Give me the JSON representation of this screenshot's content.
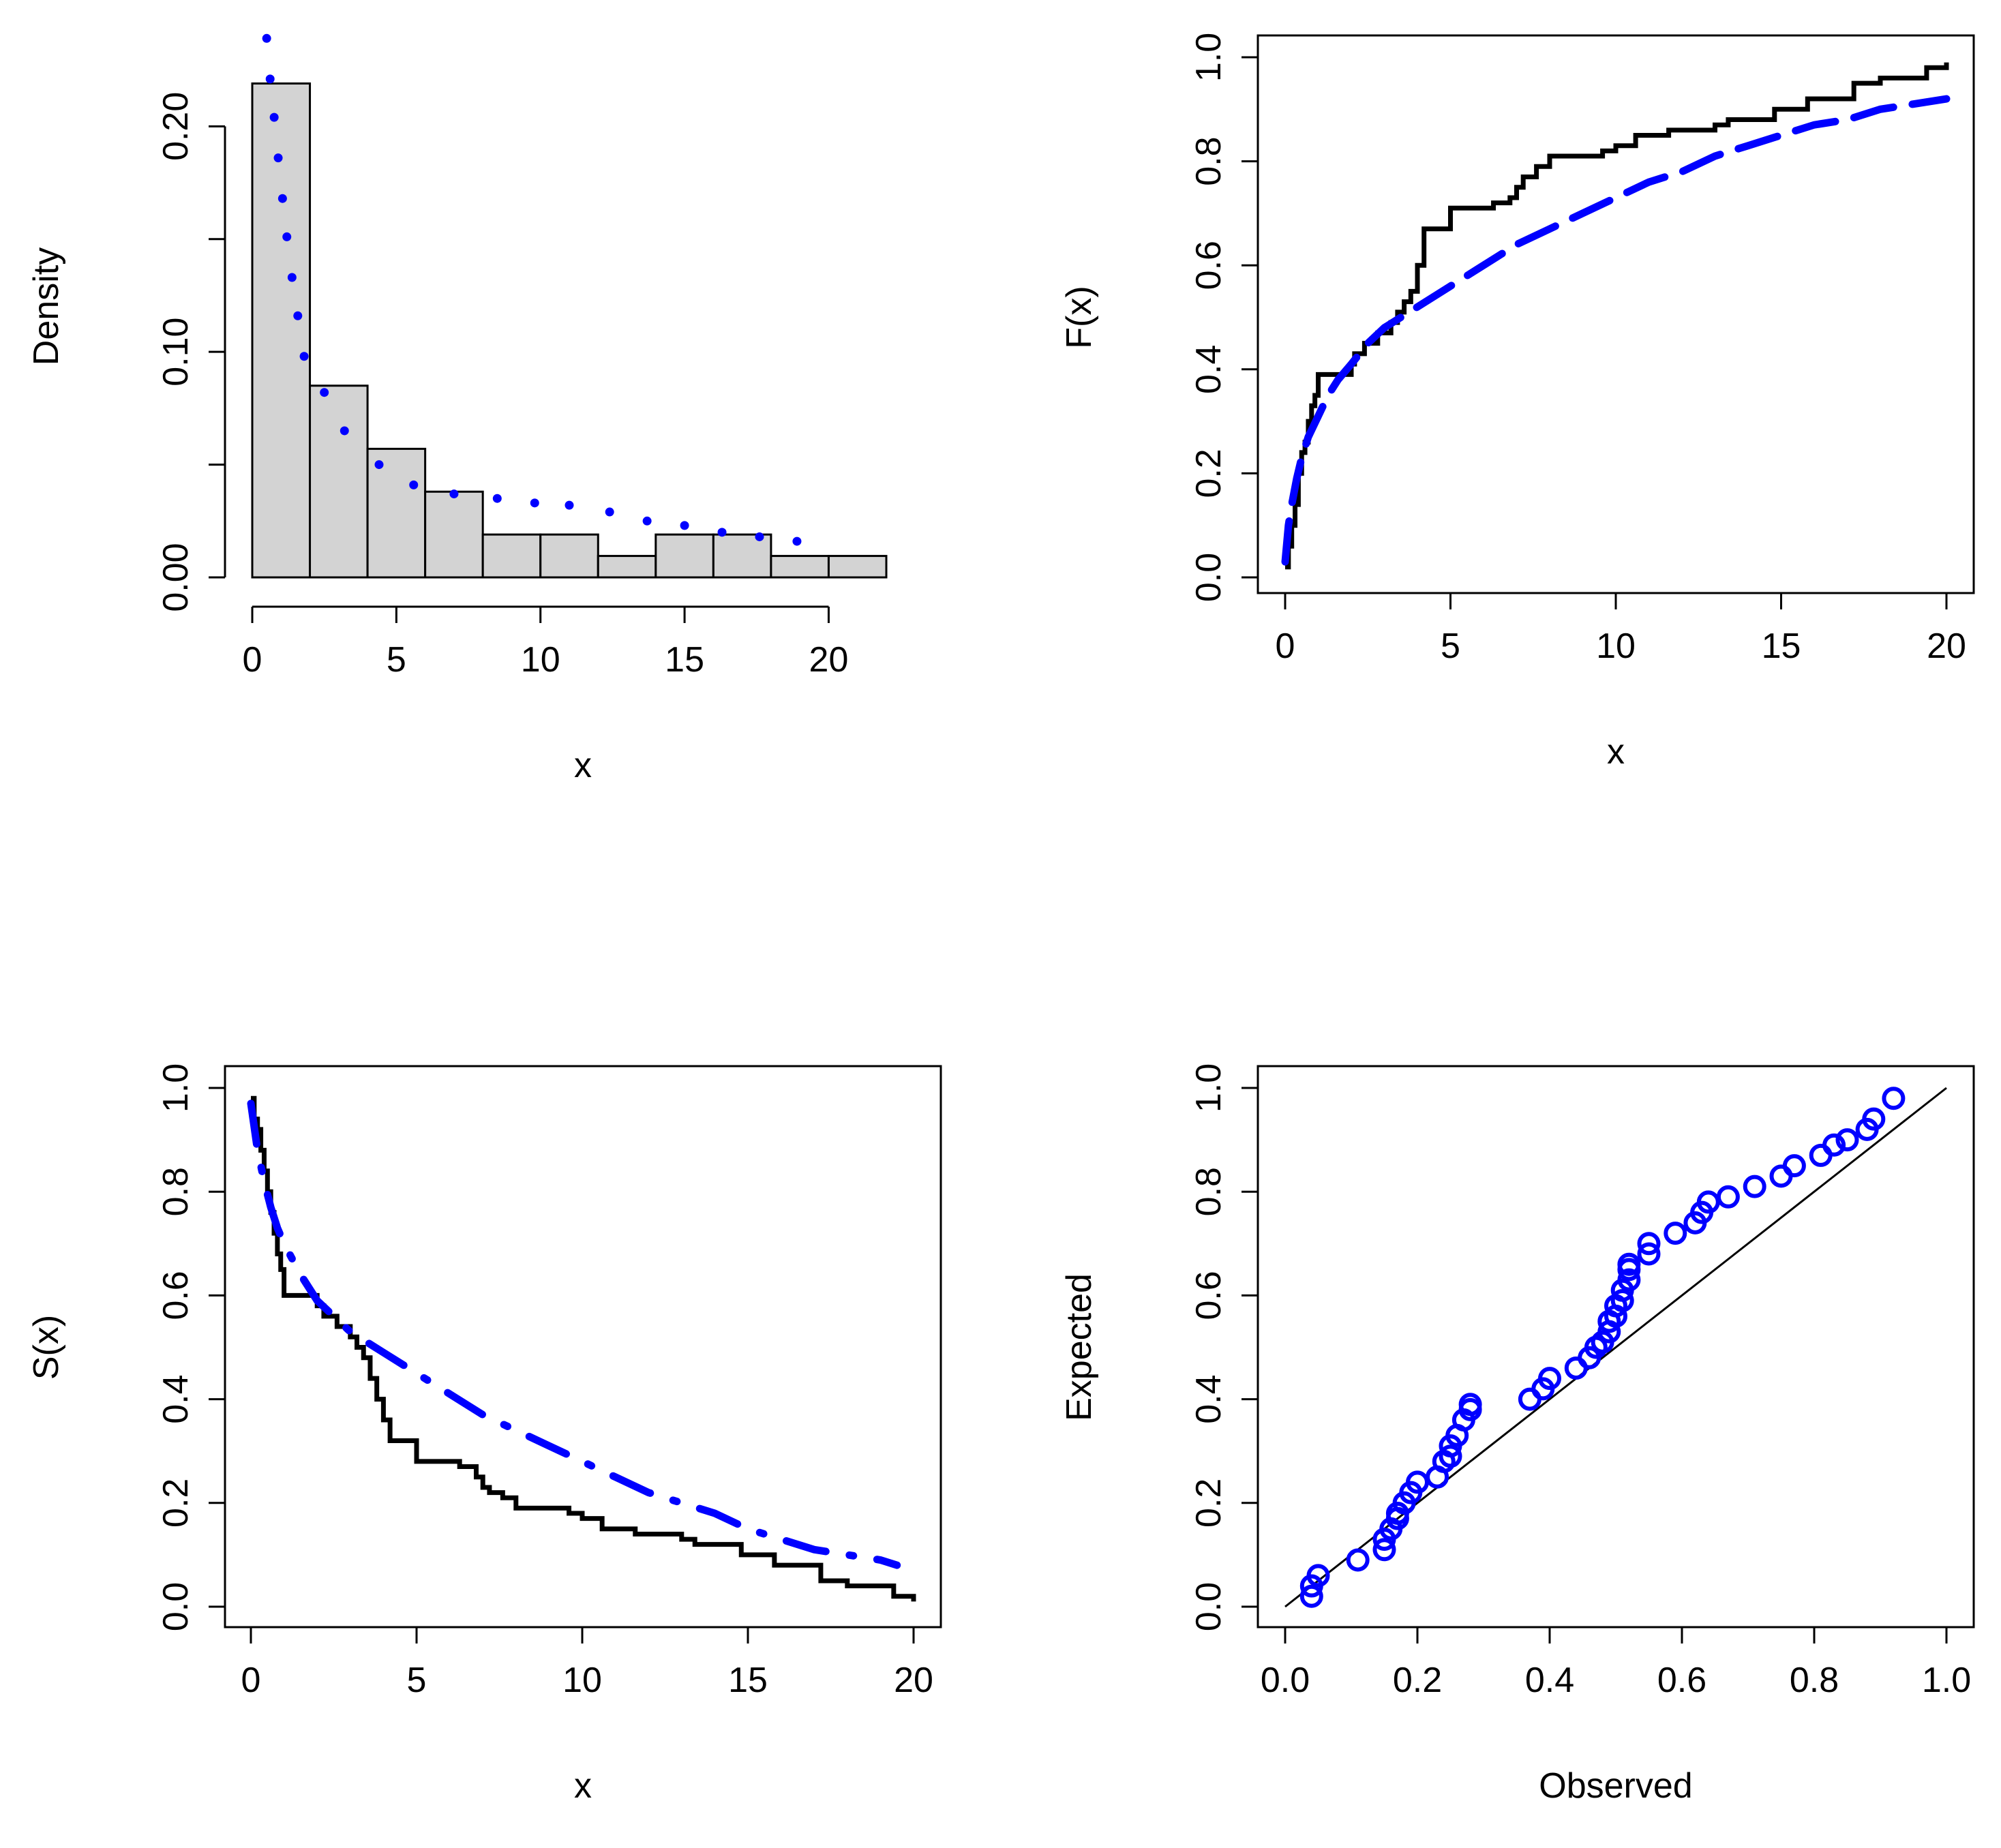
{
  "colors": {
    "fit": "#0000ff",
    "empirical": "#000000",
    "bar_fill": "#d3d3d3"
  },
  "chart_data": [
    {
      "id": "hist",
      "type": "bar",
      "title": "",
      "xlabel": "x",
      "ylabel": "Density",
      "xlim": [
        0,
        22
      ],
      "ylim": [
        0,
        0.24
      ],
      "xticks": [
        0,
        5,
        10,
        15,
        20
      ],
      "xtick_labels": [
        "0",
        "5",
        "10",
        "15",
        "20"
      ],
      "yticks": [
        0,
        0.05,
        0.1,
        0.15,
        0.2
      ],
      "ytick_labels": [
        "0.00",
        "",
        "0.10",
        "",
        "0.20"
      ],
      "bins": [
        [
          0,
          2
        ],
        [
          2,
          4
        ],
        [
          4,
          6
        ],
        [
          6,
          8
        ],
        [
          8,
          10
        ],
        [
          10,
          12
        ],
        [
          12,
          14
        ],
        [
          14,
          16
        ],
        [
          16,
          18
        ],
        [
          18,
          20
        ],
        [
          20,
          22
        ]
      ],
      "values": [
        0.219,
        0.085,
        0.057,
        0.038,
        0.019,
        0.019,
        0.0095,
        0.019,
        0.019,
        0.0095,
        0.0095
      ],
      "series": [
        {
          "style": "dotted",
          "x": [
            0.5,
            0.62,
            0.76,
            0.9,
            1.05,
            1.2,
            1.38,
            1.58,
            1.8,
            2.5,
            3.2,
            4.4,
            5.6,
            7.0,
            8.5,
            9.8,
            11.0,
            12.4,
            13.7,
            15.0,
            16.3,
            17.6,
            18.9
          ],
          "y": [
            0.239,
            0.221,
            0.204,
            0.186,
            0.168,
            0.151,
            0.133,
            0.116,
            0.098,
            0.082,
            0.065,
            0.05,
            0.041,
            0.037,
            0.035,
            0.033,
            0.032,
            0.029,
            0.025,
            0.023,
            0.02,
            0.018,
            0.016
          ]
        }
      ]
    },
    {
      "id": "cdf",
      "type": "line",
      "title": "",
      "xlabel": "x",
      "ylabel": "F(x)",
      "xlim": [
        0,
        20
      ],
      "ylim": [
        0,
        1
      ],
      "xticks": [
        0,
        5,
        10,
        15,
        20
      ],
      "xtick_labels": [
        "0",
        "5",
        "10",
        "15",
        "20"
      ],
      "yticks": [
        0,
        0.2,
        0.4,
        0.6,
        0.8,
        1.0
      ],
      "ytick_labels": [
        "0.0",
        "0.2",
        "0.4",
        "0.6",
        "0.8",
        "1.0"
      ],
      "series": [
        {
          "style": "step",
          "x": [
            0.0,
            0.1,
            0.2,
            0.3,
            0.4,
            0.5,
            0.6,
            0.7,
            0.8,
            0.9,
            1.0,
            1.9,
            2.0,
            2.1,
            2.4,
            2.6,
            2.8,
            3.0,
            3.2,
            3.4,
            3.6,
            3.8,
            4.0,
            4.2,
            5.0,
            6.3,
            6.8,
            7.0,
            7.2,
            7.6,
            8.0,
            8.8,
            9.6,
            10.0,
            10.6,
            11.0,
            11.6,
            12.0,
            13.0,
            13.4,
            14.2,
            14.8,
            15.3,
            15.8,
            17.0,
            17.2,
            18.0,
            18.8,
            19.4,
            20.0
          ],
          "y": [
            0.02,
            0.06,
            0.1,
            0.14,
            0.2,
            0.24,
            0.26,
            0.3,
            0.33,
            0.35,
            0.39,
            0.39,
            0.41,
            0.43,
            0.45,
            0.45,
            0.47,
            0.47,
            0.49,
            0.51,
            0.53,
            0.55,
            0.6,
            0.67,
            0.71,
            0.72,
            0.73,
            0.75,
            0.77,
            0.79,
            0.81,
            0.81,
            0.82,
            0.83,
            0.85,
            0.85,
            0.86,
            0.86,
            0.87,
            0.88,
            0.88,
            0.9,
            0.9,
            0.92,
            0.92,
            0.95,
            0.96,
            0.96,
            0.98,
            0.99
          ]
        },
        {
          "style": "dashed",
          "x": [
            0.0,
            0.1,
            0.2,
            0.35,
            0.5,
            0.7,
            1.0,
            1.3,
            1.6,
            2.0,
            2.5,
            3.0,
            3.5,
            4.0,
            5.0,
            6.0,
            7.0,
            8.0,
            9.0,
            10.0,
            11.0,
            12.0,
            13.0,
            14.0,
            15.0,
            16.0,
            17.0,
            18.0,
            19.0,
            20.0
          ],
          "y": [
            0.03,
            0.1,
            0.14,
            0.19,
            0.23,
            0.27,
            0.31,
            0.35,
            0.38,
            0.41,
            0.45,
            0.48,
            0.5,
            0.52,
            0.56,
            0.6,
            0.64,
            0.67,
            0.7,
            0.73,
            0.76,
            0.78,
            0.81,
            0.83,
            0.85,
            0.87,
            0.88,
            0.9,
            0.91,
            0.92
          ]
        }
      ]
    },
    {
      "id": "surv",
      "type": "line",
      "title": "",
      "xlabel": "x",
      "ylabel": "S(x)",
      "xlim": [
        0,
        20
      ],
      "ylim": [
        0,
        1
      ],
      "xticks": [
        0,
        5,
        10,
        15,
        20
      ],
      "xtick_labels": [
        "0",
        "5",
        "10",
        "15",
        "20"
      ],
      "yticks": [
        0,
        0.2,
        0.4,
        0.6,
        0.8,
        1.0
      ],
      "ytick_labels": [
        "0.0",
        "0.2",
        "0.4",
        "0.6",
        "0.8",
        "1.0"
      ],
      "series": [
        {
          "style": "step",
          "x": [
            0.0,
            0.1,
            0.2,
            0.3,
            0.4,
            0.5,
            0.6,
            0.7,
            0.8,
            0.9,
            1.0,
            1.8,
            2.0,
            2.2,
            2.6,
            3.0,
            3.2,
            3.4,
            3.6,
            3.8,
            4.0,
            4.2,
            5.0,
            6.3,
            6.8,
            7.0,
            7.2,
            7.6,
            8.0,
            8.8,
            9.6,
            10.0,
            10.6,
            11.0,
            11.6,
            12.0,
            13.0,
            13.4,
            14.2,
            14.8,
            15.3,
            15.8,
            17.0,
            17.2,
            18.0,
            18.8,
            19.4,
            20.0
          ],
          "y": [
            0.98,
            0.94,
            0.92,
            0.88,
            0.84,
            0.8,
            0.76,
            0.72,
            0.68,
            0.65,
            0.6,
            0.6,
            0.58,
            0.56,
            0.54,
            0.52,
            0.5,
            0.48,
            0.44,
            0.4,
            0.36,
            0.32,
            0.28,
            0.27,
            0.25,
            0.23,
            0.22,
            0.21,
            0.19,
            0.19,
            0.18,
            0.17,
            0.15,
            0.15,
            0.14,
            0.14,
            0.13,
            0.12,
            0.12,
            0.1,
            0.1,
            0.08,
            0.08,
            0.05,
            0.04,
            0.04,
            0.02,
            0.01
          ]
        },
        {
          "style": "dashdot",
          "x": [
            0.0,
            0.2,
            0.4,
            0.6,
            0.8,
            1.0,
            1.5,
            2.0,
            3.0,
            4.0,
            5.0,
            6.0,
            7.0,
            8.0,
            9.0,
            10.0,
            11.0,
            12.0,
            13.0,
            14.0,
            15.0,
            16.0,
            17.0,
            18.0,
            19.0,
            19.5
          ],
          "y": [
            0.97,
            0.88,
            0.82,
            0.77,
            0.73,
            0.7,
            0.64,
            0.59,
            0.53,
            0.49,
            0.45,
            0.41,
            0.37,
            0.34,
            0.31,
            0.28,
            0.25,
            0.22,
            0.2,
            0.18,
            0.15,
            0.13,
            0.11,
            0.1,
            0.09,
            0.08
          ]
        }
      ]
    },
    {
      "id": "pp",
      "type": "scatter",
      "title": "",
      "xlabel": "Observed",
      "ylabel": "Expected",
      "xlim": [
        0,
        1
      ],
      "ylim": [
        0,
        1
      ],
      "xticks": [
        0,
        0.2,
        0.4,
        0.6,
        0.8,
        1.0
      ],
      "xtick_labels": [
        "0.0",
        "0.2",
        "0.4",
        "0.6",
        "0.8",
        "1.0"
      ],
      "yticks": [
        0,
        0.2,
        0.4,
        0.6,
        0.8,
        1.0
      ],
      "ytick_labels": [
        "0.0",
        "0.2",
        "0.4",
        "0.6",
        "0.8",
        "1.0"
      ],
      "reference_line": {
        "x": [
          0,
          1
        ],
        "y": [
          0,
          1
        ]
      },
      "series": [
        {
          "style": "points",
          "x": [
            0.04,
            0.04,
            0.05,
            0.11,
            0.15,
            0.15,
            0.16,
            0.17,
            0.17,
            0.18,
            0.19,
            0.2,
            0.23,
            0.24,
            0.25,
            0.25,
            0.26,
            0.27,
            0.28,
            0.28,
            0.37,
            0.39,
            0.4,
            0.44,
            0.46,
            0.47,
            0.48,
            0.49,
            0.49,
            0.5,
            0.5,
            0.51,
            0.51,
            0.52,
            0.52,
            0.52,
            0.55,
            0.55,
            0.59,
            0.62,
            0.63,
            0.64,
            0.67,
            0.71,
            0.75,
            0.77,
            0.81,
            0.83,
            0.85,
            0.88,
            0.89,
            0.92
          ],
          "y": [
            0.02,
            0.04,
            0.06,
            0.09,
            0.11,
            0.13,
            0.15,
            0.17,
            0.18,
            0.2,
            0.22,
            0.24,
            0.25,
            0.28,
            0.29,
            0.31,
            0.33,
            0.36,
            0.38,
            0.39,
            0.4,
            0.42,
            0.44,
            0.46,
            0.48,
            0.5,
            0.51,
            0.53,
            0.55,
            0.56,
            0.58,
            0.59,
            0.61,
            0.63,
            0.65,
            0.66,
            0.68,
            0.7,
            0.72,
            0.74,
            0.76,
            0.78,
            0.79,
            0.81,
            0.83,
            0.85,
            0.87,
            0.89,
            0.9,
            0.92,
            0.94,
            0.98
          ]
        }
      ]
    }
  ]
}
